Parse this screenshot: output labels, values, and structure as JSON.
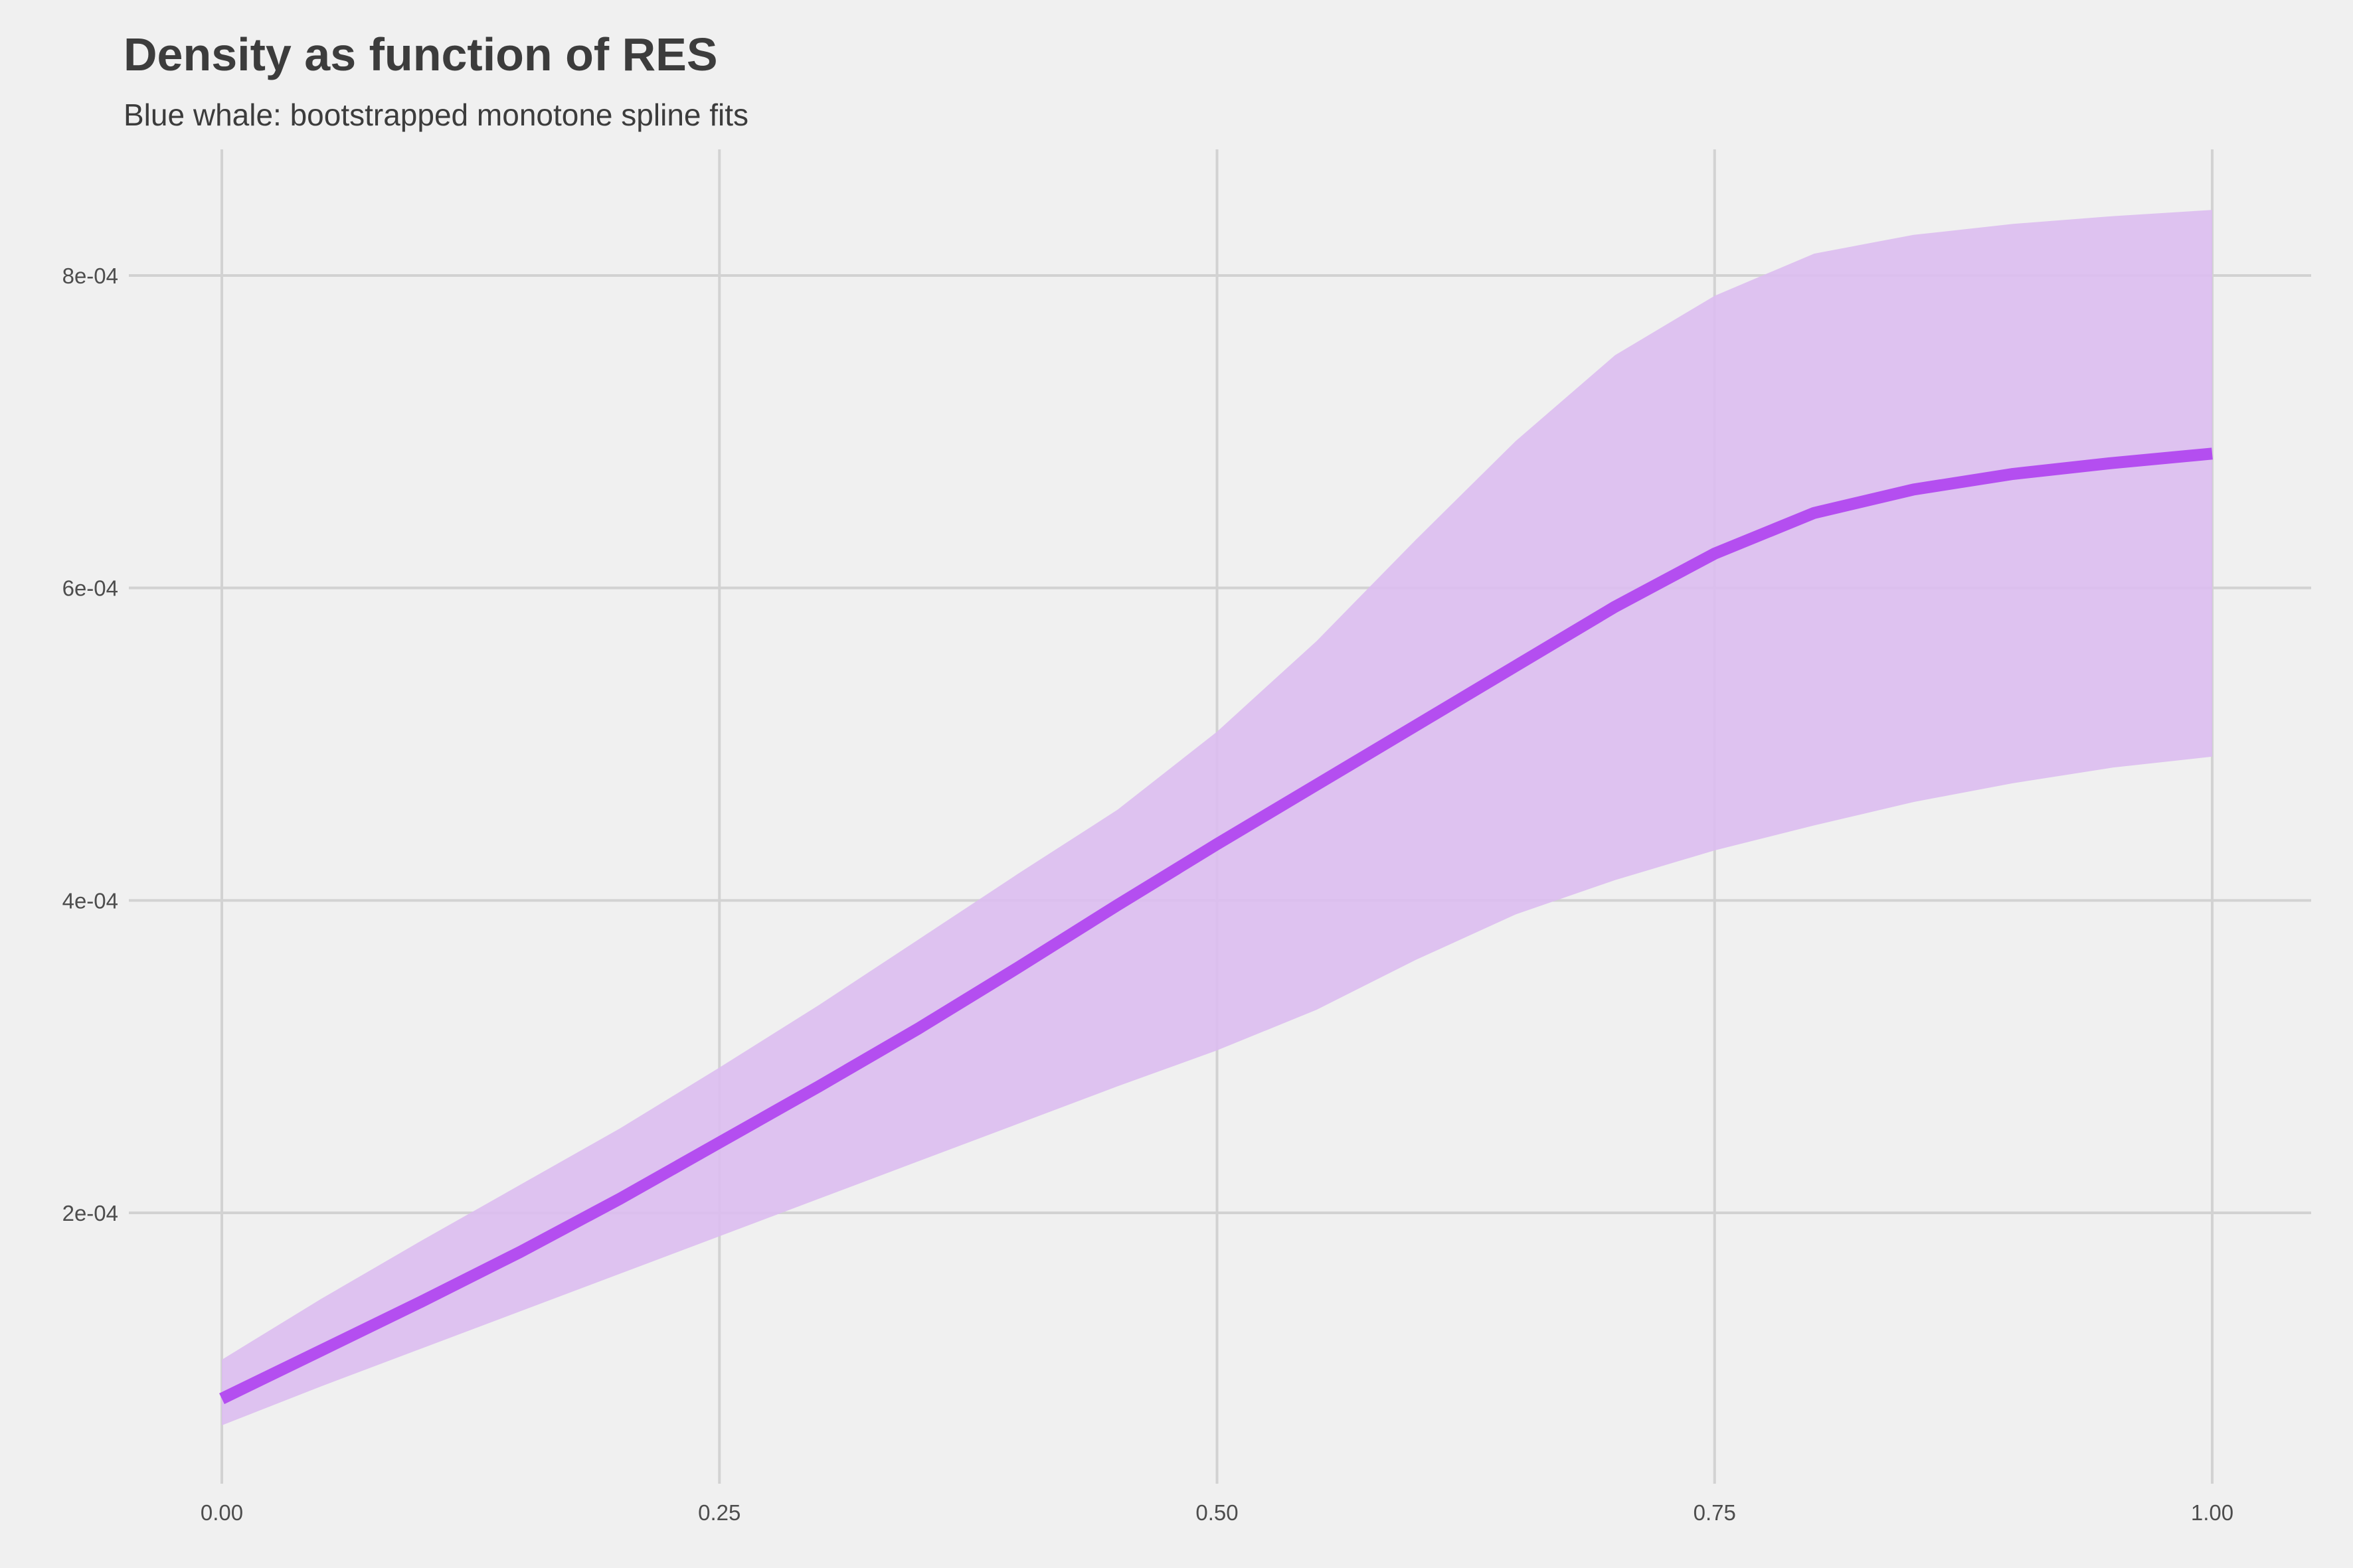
{
  "chart_data": {
    "type": "area",
    "title": "Density as function of RES",
    "subtitle": "Blue whale: bootstrapped monotone spline fits",
    "xlabel": "",
    "ylabel": "",
    "xlim": [
      0,
      1
    ],
    "ylim": [
      4e-05,
      0.00088
    ],
    "x_ticks": [
      0,
      0.25,
      0.5,
      0.75,
      1
    ],
    "x_tick_labels": [
      "0.00",
      "0.25",
      "0.50",
      "0.75",
      "1.00"
    ],
    "y_ticks": [
      0.0002,
      0.0004,
      0.0006,
      0.0008
    ],
    "y_tick_labels": [
      "2e-04",
      "4e-04",
      "6e-04",
      "8e-04"
    ],
    "grid": true,
    "legend": "none",
    "colors": {
      "line": "#b44ef0",
      "ribbon": "#dcbcf0",
      "background": "#f0f0f0",
      "grid": "#d2d2d2"
    },
    "x": [
      0,
      0.05,
      0.1,
      0.15,
      0.2,
      0.25,
      0.3,
      0.35,
      0.4,
      0.45,
      0.5,
      0.55,
      0.6,
      0.65,
      0.7,
      0.75,
      0.8,
      0.85,
      0.9,
      0.95,
      1
    ],
    "series": [
      {
        "name": "",
        "role": "fit",
        "values": [
          8.1e-05,
          0.000112,
          0.000143,
          0.000175,
          0.000209,
          0.000245,
          0.000281,
          0.000318,
          0.000357,
          0.000397,
          0.000436,
          0.000474,
          0.000512,
          0.00055,
          0.000588,
          0.000622,
          0.000648,
          0.000663,
          0.000673,
          0.00068,
          0.000686
        ]
      },
      {
        "name": "",
        "role": "lower",
        "values": [
          6.4e-05,
          8.9e-05,
          0.000113,
          0.000137,
          0.000161,
          0.000185,
          0.000209,
          0.000233,
          0.000257,
          0.000281,
          0.000304,
          0.00033,
          0.000362,
          0.000391,
          0.000413,
          0.000432,
          0.000448,
          0.000463,
          0.000475,
          0.000485,
          0.000492
        ]
      },
      {
        "name": "",
        "role": "upper",
        "values": [
          0.000106,
          0.000145,
          0.000182,
          0.000218,
          0.000254,
          0.000293,
          0.000333,
          0.000375,
          0.000417,
          0.000458,
          0.000508,
          0.000566,
          0.000631,
          0.000694,
          0.000749,
          0.000787,
          0.000814,
          0.000826,
          0.000833,
          0.000838,
          0.000842
        ]
      }
    ]
  }
}
